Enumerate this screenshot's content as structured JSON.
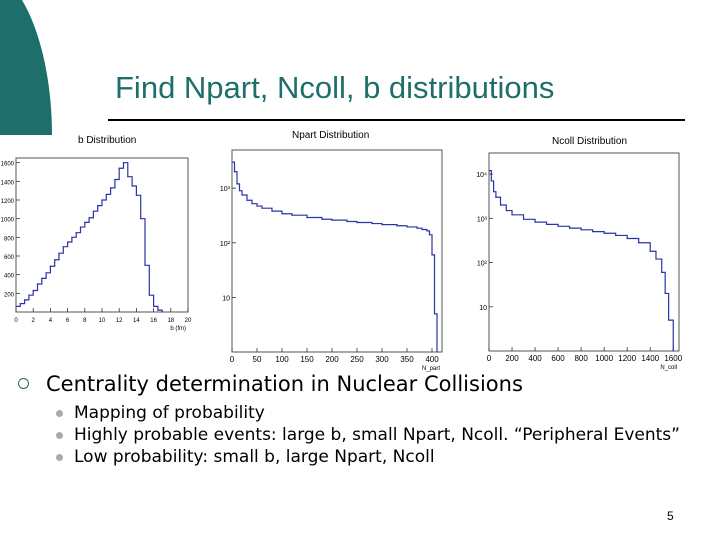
{
  "slide": {
    "title": "Find Npart, Ncoll, b distributions",
    "bullet_main": "Centrality determination in Nuclear Collisions",
    "sub_bullets": [
      "Mapping of probability",
      "Highly probable events: large b, small Npart, Ncoll. “Peripheral Events”",
      "Low probability: small b, large Npart, Ncoll"
    ],
    "page_number": "5",
    "accent_color": "#1e6f6c"
  },
  "chart_data": [
    {
      "type": "line",
      "title": "b Distribution",
      "xlabel": "b (fm)",
      "ylabel": "",
      "xlim": [
        0,
        20
      ],
      "ylim": [
        0,
        1650
      ],
      "yscale": "linear",
      "xticks": [
        "0",
        "2",
        "4",
        "6",
        "8",
        "10",
        "12",
        "14",
        "16",
        "18",
        "20"
      ],
      "yticks": [
        "200",
        "400",
        "600",
        "800",
        "1000",
        "1200",
        "1400",
        "1600"
      ],
      "series": [
        {
          "color": "#2b33a5",
          "x": [
            0,
            0.5,
            1,
            1.5,
            2,
            2.5,
            3,
            3.5,
            4,
            4.5,
            5,
            5.5,
            6,
            6.5,
            7,
            7.5,
            8,
            8.5,
            9,
            9.5,
            10,
            10.5,
            11,
            11.5,
            12,
            12.5,
            13,
            13.5,
            14,
            14.5,
            15,
            15.5,
            16,
            16.5,
            17
          ],
          "y": [
            60,
            90,
            130,
            180,
            230,
            300,
            360,
            420,
            490,
            560,
            630,
            700,
            750,
            800,
            850,
            910,
            960,
            1010,
            1080,
            1140,
            1200,
            1260,
            1330,
            1420,
            1540,
            1600,
            1450,
            1350,
            1250,
            1000,
            500,
            180,
            60,
            20,
            5
          ]
        }
      ]
    },
    {
      "type": "line",
      "title": "Npart Distribution",
      "xlabel": "N_part",
      "ylabel": "",
      "xlim": [
        0,
        420
      ],
      "ylim": [
        1,
        5000
      ],
      "yscale": "log",
      "xticks": [
        "0",
        "50",
        "100",
        "150",
        "200",
        "250",
        "300",
        "350",
        "400"
      ],
      "yticks": [
        "10",
        "10²",
        "10³"
      ],
      "series": [
        {
          "color": "#2b33a5",
          "x": [
            2,
            5,
            10,
            15,
            20,
            30,
            40,
            50,
            60,
            80,
            100,
            120,
            150,
            180,
            200,
            230,
            250,
            280,
            300,
            330,
            350,
            370,
            380,
            390,
            395,
            400,
            405,
            410
          ],
          "y": [
            3000,
            2000,
            1200,
            900,
            750,
            600,
            520,
            470,
            430,
            380,
            340,
            320,
            290,
            270,
            260,
            245,
            235,
            225,
            215,
            205,
            195,
            185,
            175,
            165,
            140,
            60,
            5,
            1
          ]
        }
      ]
    },
    {
      "type": "line",
      "title": "Ncoll Distribution",
      "xlabel": "N_coll",
      "ylabel": "",
      "xlim": [
        0,
        1650
      ],
      "ylim": [
        1,
        30000
      ],
      "yscale": "log",
      "xticks": [
        "0",
        "200",
        "400",
        "600",
        "800",
        "1000",
        "1200",
        "1400",
        "1600"
      ],
      "yticks": [
        "10",
        "10²",
        "10³",
        "10⁴"
      ],
      "series": [
        {
          "color": "#2b33a5",
          "x": [
            5,
            20,
            40,
            60,
            100,
            150,
            200,
            300,
            400,
            500,
            600,
            700,
            800,
            900,
            1000,
            1100,
            1200,
            1300,
            1400,
            1450,
            1500,
            1530,
            1560,
            1600
          ],
          "y": [
            12000,
            7000,
            4000,
            3000,
            2000,
            1500,
            1200,
            950,
            820,
            730,
            660,
            600,
            550,
            500,
            460,
            410,
            350,
            280,
            180,
            120,
            60,
            20,
            5,
            1
          ]
        }
      ]
    }
  ]
}
